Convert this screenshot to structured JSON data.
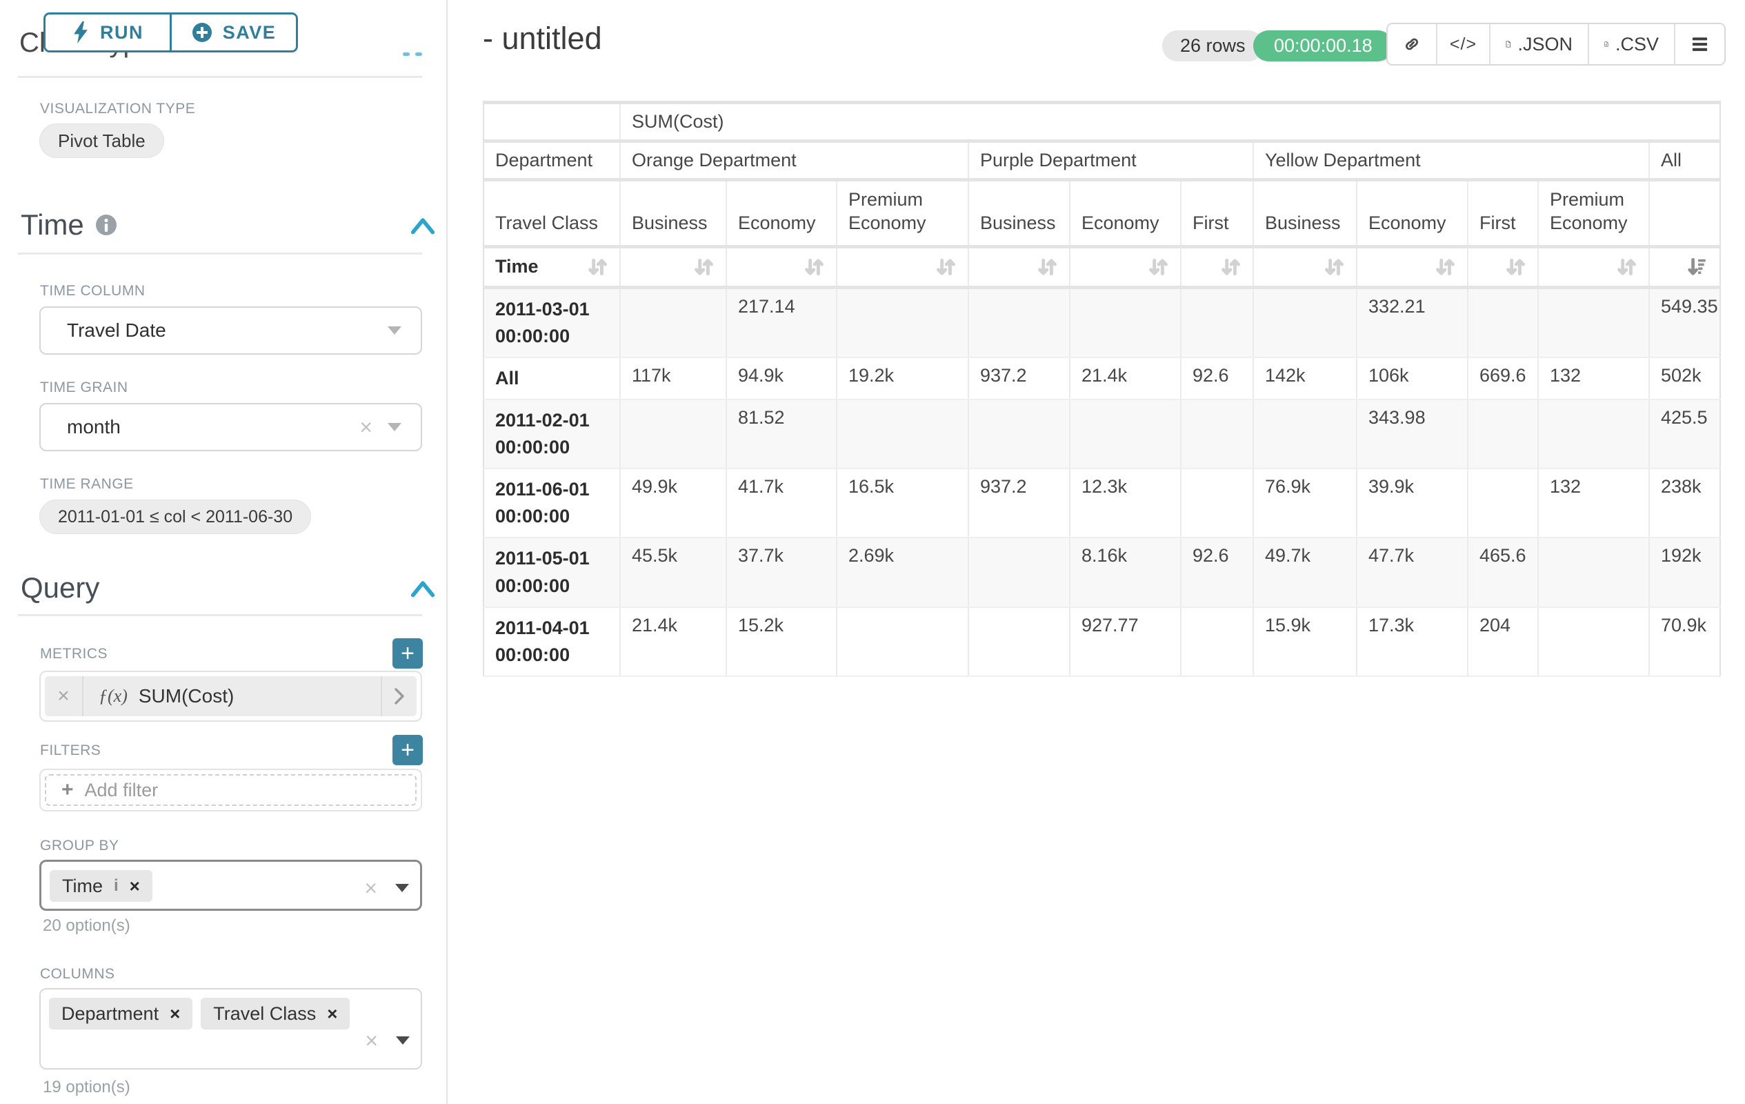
{
  "sidebar": {
    "run_button": {
      "label": "RUN"
    },
    "save_button": {
      "label": "SAVE"
    },
    "scrolled_heading": "Chart Type",
    "visualization_type": {
      "label": "VISUALIZATION TYPE",
      "value": "Pivot Table"
    },
    "time": {
      "title": "Time",
      "time_column": {
        "label": "TIME COLUMN",
        "value": "Travel Date"
      },
      "time_grain": {
        "label": "TIME GRAIN",
        "value": "month"
      },
      "time_range": {
        "label": "TIME RANGE",
        "value": "2011-01-01 ≤ col < 2011-06-30"
      }
    },
    "query": {
      "title": "Query",
      "metrics": {
        "label": "METRICS",
        "items": [
          {
            "prefix": "ƒ(x)",
            "name": "SUM(Cost)"
          }
        ]
      },
      "filters": {
        "label": "FILTERS",
        "placeholder": "Add filter"
      },
      "group_by": {
        "label": "GROUP BY",
        "values": [
          "Time"
        ],
        "hint": "20 option(s)"
      },
      "columns": {
        "label": "COLUMNS",
        "values": [
          "Department",
          "Travel Class"
        ],
        "hint": "19 option(s)"
      }
    }
  },
  "header": {
    "title": "- untitled",
    "row_count": "26 rows",
    "query_time": "00:00:00.18",
    "export_json_label": ".JSON",
    "export_csv_label": ".CSV"
  },
  "chart_data": {
    "type": "table",
    "metric_header": "SUM(Cost)",
    "department_label": "Department",
    "department_groups": [
      {
        "name": "Orange Department",
        "span": 3
      },
      {
        "name": "Purple Department",
        "span": 3
      },
      {
        "name": "Yellow Department",
        "span": 4
      },
      {
        "name": "All",
        "span": 1
      }
    ],
    "travel_class_label": "Travel Class",
    "travel_classes": [
      "Business",
      "Economy",
      "Premium Economy",
      "Business",
      "Economy",
      "First",
      "Business",
      "Economy",
      "First",
      "Premium Economy",
      ""
    ],
    "time_label": "Time",
    "all_column_sort_icon": "sort-descending",
    "rows": [
      {
        "label": "2011-03-01 00:00:00",
        "values": [
          "",
          "217.14",
          "",
          "",
          "",
          "",
          "",
          "332.21",
          "",
          "",
          "549.35"
        ]
      },
      {
        "label": "All",
        "values": [
          "117k",
          "94.9k",
          "19.2k",
          "937.2",
          "21.4k",
          "92.6",
          "142k",
          "106k",
          "669.6",
          "132",
          "502k"
        ]
      },
      {
        "label": "2011-02-01 00:00:00",
        "values": [
          "",
          "81.52",
          "",
          "",
          "",
          "",
          "",
          "343.98",
          "",
          "",
          "425.5"
        ]
      },
      {
        "label": "2011-06-01 00:00:00",
        "values": [
          "49.9k",
          "41.7k",
          "16.5k",
          "937.2",
          "12.3k",
          "",
          "76.9k",
          "39.9k",
          "",
          "132",
          "238k"
        ]
      },
      {
        "label": "2011-05-01 00:00:00",
        "values": [
          "45.5k",
          "37.7k",
          "2.69k",
          "",
          "8.16k",
          "92.6",
          "49.7k",
          "47.7k",
          "465.6",
          "",
          "192k"
        ]
      },
      {
        "label": "2011-04-01 00:00:00",
        "values": [
          "21.4k",
          "15.2k",
          "",
          "",
          "927.77",
          "",
          "15.9k",
          "17.3k",
          "204",
          "",
          "70.9k"
        ]
      }
    ]
  },
  "icons": {
    "run": "bolt-icon",
    "save": "plus-circle-icon",
    "section_info": "info-icon",
    "collapse": "chevron-up-icon",
    "select": "caret-down-icon",
    "clear": "close-icon",
    "export": [
      "link-icon",
      "code-icon",
      "json-file-icon",
      "csv-file-icon",
      "menu-icon"
    ],
    "sort_inactive": "sort-arrows-icon",
    "sort_active": "sort-descending-icon"
  },
  "colors": {
    "primary_teal": "#2E7E9C",
    "add_button_teal": "#3D84A1",
    "collapse_blue": "#2BA5CC",
    "timer_green": "#5BC08A",
    "pill_gray": "#ECECEC",
    "focus_border": "#8A8A8A"
  }
}
